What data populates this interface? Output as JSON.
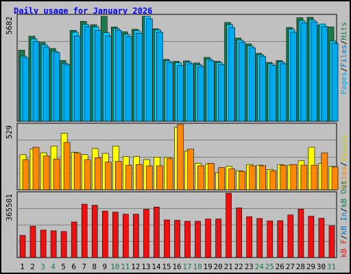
{
  "title": "Daily usage for January 2026",
  "colors": {
    "frame_bg": "#c0c0c0",
    "plot_bg": "#c0c0c0",
    "title": "#0000ff",
    "hits": "#1a7a4a",
    "files": "#00ccff",
    "pages": "#00aaee",
    "visits": "#ffff00",
    "sites": "#ff8800",
    "kb": "#ee1111",
    "day_normal": "#000000",
    "day_weekend": "#1a7a4a"
  },
  "legend": {
    "top": {
      "pages": "Pages",
      "files": "Files",
      "hits": "Hits",
      "sep": "/"
    },
    "mid": {
      "sites": "Sites",
      "visits": "Visits",
      "sep": "/"
    },
    "bot": {
      "kb_f": "kB F",
      "kb_in": "kB In",
      "kb_out": "kB Out",
      "sep": "/"
    }
  },
  "chart_data": {
    "type": "bar",
    "title": "Daily usage for January 2026",
    "x": [
      "1",
      "2",
      "3",
      "4",
      "5",
      "6",
      "7",
      "8",
      "9",
      "10",
      "11",
      "12",
      "13",
      "14",
      "15",
      "16",
      "17",
      "18",
      "19",
      "20",
      "21",
      "22",
      "23",
      "24",
      "25",
      "26",
      "27",
      "28",
      "29",
      "30",
      "31"
    ],
    "weekend_days": [
      3,
      4,
      10,
      11,
      17,
      18,
      24,
      25,
      31
    ],
    "panels": [
      {
        "name": "top",
        "ymax_label": "5682",
        "ymax": 5682,
        "series": [
          {
            "name": "Hits",
            "values": [
              3830,
              4580,
              4250,
              3920,
              3270,
              4900,
              5380,
              5200,
              5650,
              5080,
              4820,
              4950,
              5650,
              4980,
              3330,
              3230,
              3250,
              3140,
              3440,
              3230,
              5320,
              4480,
              4170,
              3660,
              3170,
              3270,
              5050,
              5580,
              5600,
              5170,
              5080
            ]
          },
          {
            "name": "Files",
            "values": [
              3500,
              4430,
              4120,
              3770,
              3120,
              4800,
              5220,
              5080,
              4770,
              4980,
              4680,
              4880,
              5650,
              4920,
              3250,
              3150,
              3180,
              3040,
              3340,
              3160,
              5200,
              4380,
              4060,
              3580,
              3100,
              3200,
              4960,
              5420,
              5460,
              5240,
              4320
            ]
          },
          {
            "name": "Pages",
            "values": [
              3400,
              4300,
              4000,
              3700,
              3050,
              4600,
              5100,
              4900,
              4600,
              4900,
              4550,
              4750,
              5520,
              4800,
              3150,
              3000,
              3100,
              2950,
              3250,
              3050,
              5050,
              4250,
              3950,
              3500,
              3000,
              3100,
              4800,
              5300,
              5350,
              5100,
              4200
            ]
          }
        ]
      },
      {
        "name": "mid",
        "ymax_label": "529",
        "ymax": 529,
        "series": [
          {
            "name": "Visits",
            "values": [
              285,
              330,
              300,
              355,
              460,
              305,
              285,
              335,
              295,
              355,
              270,
              270,
              245,
              265,
              265,
              510,
              315,
              215,
              210,
              140,
              190,
              155,
              205,
              200,
              165,
              205,
              200,
              235,
              345,
              215,
              190
            ]
          },
          {
            "name": "Sites",
            "values": [
              245,
              345,
              275,
              250,
              385,
              300,
              245,
              260,
              225,
              230,
              200,
              205,
              195,
              195,
              255,
              530,
              330,
              195,
              215,
              180,
              170,
              150,
              195,
              195,
              155,
              200,
              205,
              200,
              200,
              300,
              185
            ]
          }
        ]
      },
      {
        "name": "bot",
        "ymax_label": "365501",
        "ymax": 365501,
        "series": [
          {
            "name": "kB F",
            "values": [
              126000,
              178000,
              156000,
              152000,
              148000,
              202000,
              303000,
              297000,
              264000,
              258000,
              246000,
              246000,
              274000,
              287000,
              214000,
              212000,
              206000,
              206000,
              219000,
              219000,
              365501,
              282000,
              232000,
              222000,
              208000,
              209000,
              242000,
              275000,
              235000,
              223000,
              180000
            ]
          }
        ]
      }
    ]
  }
}
